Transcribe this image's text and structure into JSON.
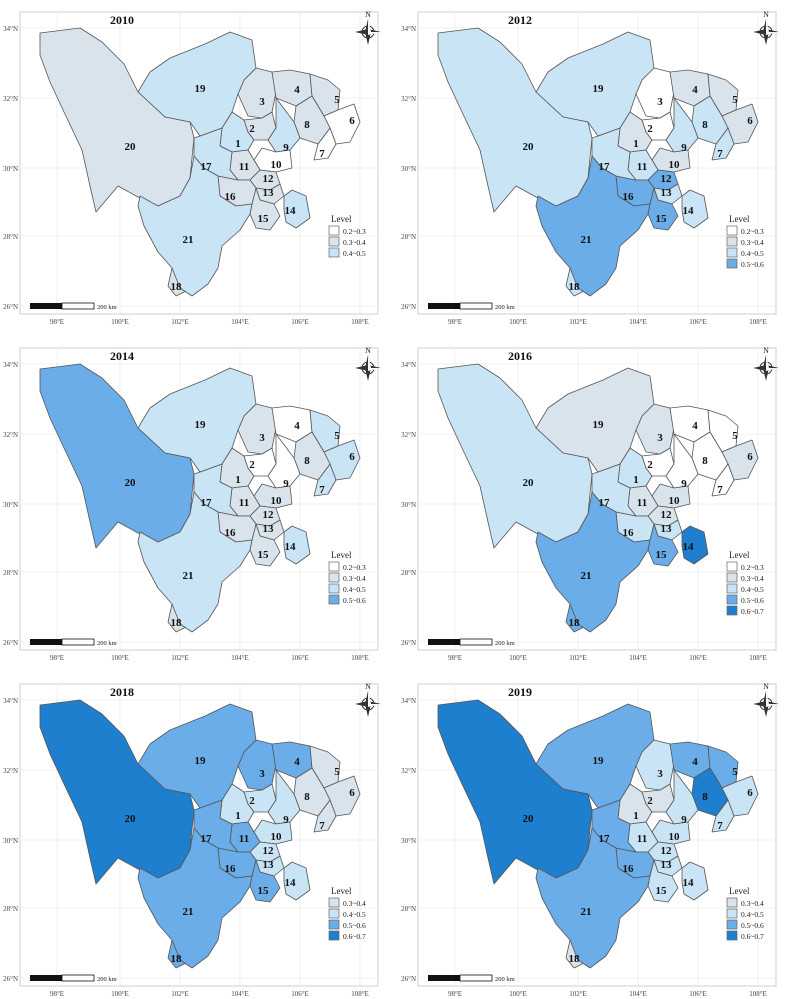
{
  "figure": {
    "lat_labels": [
      "34°N",
      "32°N",
      "30°N",
      "28°N",
      "26°N"
    ],
    "lon_labels": [
      "98°E",
      "100°E",
      "102°E",
      "104°E",
      "106°E",
      "108°E"
    ],
    "north_label": "N",
    "scale_label": "200 km",
    "legend_title": "Level",
    "level_colors": {
      "0.2~0.3": "#ffffff",
      "0.3~0.4": "#d9e3ec",
      "0.4~0.5": "#c9e4f5",
      "0.5~0.6": "#6aade8",
      "0.6~0.7": "#1f7fcf"
    }
  },
  "panels": [
    {
      "year": "2010",
      "legend": [
        "0.2~0.3",
        "0.3~0.4",
        "0.4~0.5"
      ],
      "levels": {
        "1": "0.4~0.5",
        "2": "0.3~0.4",
        "3": "0.3~0.4",
        "4": "0.3~0.4",
        "5": "0.3~0.4",
        "6": "0.2~0.3",
        "7": "0.2~0.3",
        "8": "0.3~0.4",
        "9": "0.4~0.5",
        "10": "0.2~0.3",
        "11": "0.3~0.4",
        "12": "0.3~0.4",
        "13": "0.3~0.4",
        "14": "0.4~0.5",
        "15": "0.3~0.4",
        "16": "0.3~0.4",
        "17": "0.4~0.5",
        "18": "0.3~0.4",
        "19": "0.4~0.5",
        "20": "0.3~0.4",
        "21": "0.4~0.5"
      }
    },
    {
      "year": "2012",
      "legend": [
        "0.2~0.3",
        "0.3~0.4",
        "0.4~0.5",
        "0.5~0.6"
      ],
      "levels": {
        "1": "0.3~0.4",
        "2": "0.2~0.3",
        "3": "0.2~0.3",
        "4": "0.3~0.4",
        "5": "0.3~0.4",
        "6": "0.3~0.4",
        "7": "0.4~0.5",
        "8": "0.4~0.5",
        "9": "0.4~0.5",
        "10": "0.3~0.4",
        "11": "0.4~0.5",
        "12": "0.5~0.6",
        "13": "0.4~0.5",
        "14": "0.4~0.5",
        "15": "0.5~0.6",
        "16": "0.5~0.6",
        "17": "0.4~0.5",
        "18": "0.4~0.5",
        "19": "0.4~0.5",
        "20": "0.4~0.5",
        "21": "0.5~0.6"
      }
    },
    {
      "year": "2014",
      "legend": [
        "0.2~0.3",
        "0.3~0.4",
        "0.4~0.5",
        "0.5~0.6"
      ],
      "levels": {
        "1": "0.3~0.4",
        "2": "0.2~0.3",
        "3": "0.3~0.4",
        "4": "0.2~0.3",
        "5": "0.4~0.5",
        "6": "0.4~0.5",
        "7": "0.4~0.5",
        "8": "0.3~0.4",
        "9": "0.2~0.3",
        "10": "0.3~0.4",
        "11": "0.3~0.4",
        "12": "0.3~0.4",
        "13": "0.3~0.4",
        "14": "0.4~0.5",
        "15": "0.3~0.4",
        "16": "0.3~0.4",
        "17": "0.4~0.5",
        "18": "0.3~0.4",
        "19": "0.4~0.5",
        "20": "0.5~0.6",
        "21": "0.4~0.5"
      }
    },
    {
      "year": "2016",
      "legend": [
        "0.2~0.3",
        "0.3~0.4",
        "0.4~0.5",
        "0.5~0.6",
        "0.6~0.7"
      ],
      "levels": {
        "1": "0.4~0.5",
        "2": "0.2~0.3",
        "3": "0.3~0.4",
        "4": "0.2~0.3",
        "5": "0.2~0.3",
        "6": "0.3~0.4",
        "7": "0.2~0.3",
        "8": "0.2~0.3",
        "9": "0.2~0.3",
        "10": "0.3~0.4",
        "11": "0.3~0.4",
        "12": "0.3~0.4",
        "13": "0.4~0.5",
        "14": "0.6~0.7",
        "15": "0.5~0.6",
        "16": "0.4~0.5",
        "17": "0.4~0.5",
        "18": "0.5~0.6",
        "19": "0.3~0.4",
        "20": "0.4~0.5",
        "21": "0.5~0.6"
      }
    },
    {
      "year": "2018",
      "legend": [
        "0.3~0.4",
        "0.4~0.5",
        "0.5~0.6",
        "0.6~0.7"
      ],
      "levels": {
        "1": "0.4~0.5",
        "2": "0.4~0.5",
        "3": "0.5~0.6",
        "4": "0.5~0.6",
        "5": "0.3~0.4",
        "6": "0.3~0.4",
        "7": "0.3~0.4",
        "8": "0.3~0.4",
        "9": "0.4~0.5",
        "10": "0.4~0.5",
        "11": "0.5~0.6",
        "12": "0.4~0.5",
        "13": "0.4~0.5",
        "14": "0.4~0.5",
        "15": "0.5~0.6",
        "16": "0.5~0.6",
        "17": "0.5~0.6",
        "18": "0.5~0.6",
        "19": "0.5~0.6",
        "20": "0.6~0.7",
        "21": "0.5~0.6"
      }
    },
    {
      "year": "2019",
      "legend": [
        "0.3~0.4",
        "0.4~0.5",
        "0.5~0.6",
        "0.6~0.7"
      ],
      "levels": {
        "1": "0.3~0.4",
        "2": "0.3~0.4",
        "3": "0.4~0.5",
        "4": "0.5~0.6",
        "5": "0.5~0.6",
        "6": "0.4~0.5",
        "7": "0.4~0.5",
        "8": "0.6~0.7",
        "9": "0.4~0.5",
        "10": "0.4~0.5",
        "11": "0.4~0.5",
        "12": "0.4~0.5",
        "13": "0.4~0.5",
        "14": "0.4~0.5",
        "15": "0.4~0.5",
        "16": "0.5~0.6",
        "17": "0.5~0.6",
        "18": "0.3~0.4",
        "19": "0.5~0.6",
        "20": "0.6~0.7",
        "21": "0.5~0.6"
      }
    }
  ]
}
